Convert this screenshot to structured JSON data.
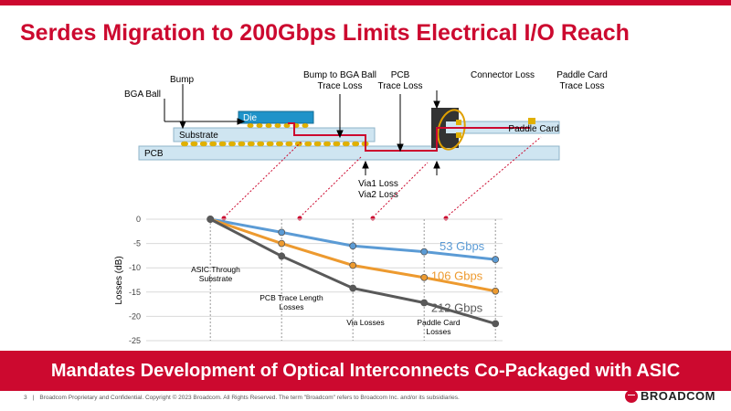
{
  "slide": {
    "title": "Serdes Migration to 200Gbps Limits Electrical I/O Reach",
    "banner": "Mandates Development of Optical Interconnects Co-Packaged with ASIC",
    "page_number": "3",
    "footer_separator": "|",
    "footer_text": "Broadcom Proprietary and Confidential.  Copyright © 2023 Broadcom.  All Rights Reserved. The term \"Broadcom\" refers to Broadcom Inc. and/or its subsidiaries.",
    "logo_text": "BROADCOM"
  },
  "diagram": {
    "labels": {
      "bga_ball": "BGA Ball",
      "bump": "Bump",
      "die": "Die",
      "substrate": "Substrate",
      "pcb": "PCB",
      "paddle_card": "Paddle Card",
      "bump_to_bga_1": "Bump to BGA Ball",
      "bump_to_bga_2": "Trace Loss",
      "pcb_trace_1": "PCB",
      "pcb_trace_2": "Trace Loss",
      "connector_loss": "Connector Loss",
      "paddle_trace_1": "Paddle Card",
      "paddle_trace_2": "Trace Loss",
      "via1": "Via1 Loss",
      "via2": "Via2 Loss"
    },
    "colors": {
      "accent": "#cc092f",
      "trace": "#cc092f",
      "board_fill": "#cfe5f1",
      "die_fill": "#1f93c9",
      "ball": "#e0b000",
      "connector": "#333333",
      "connector_ring": "#e0a000"
    }
  },
  "chart_data": {
    "type": "line",
    "ylabel": "Losses (dB)",
    "ylim": [
      -25,
      0
    ],
    "yticks": [
      "0",
      "-5",
      "-10",
      "-15",
      "-20",
      "-25"
    ],
    "y_tick_values": [
      0,
      -5,
      -10,
      -15,
      -20,
      -25
    ],
    "x": [
      0,
      1,
      2,
      3,
      4
    ],
    "xlim": [
      -0.9,
      4.1
    ],
    "grid": true,
    "series": [
      {
        "name": "53 Gbps",
        "color": "#5b9bd5",
        "values": [
          0,
          -2.7,
          -5.5,
          -6.7,
          -8.3
        ]
      },
      {
        "name": "106 Gbps",
        "color": "#ed9a2f",
        "values": [
          0,
          -5,
          -9.5,
          -12,
          -14.8
        ]
      },
      {
        "name": "212 Gbps",
        "color": "#595959",
        "values": [
          0,
          -7.6,
          -14.2,
          -17.2,
          -21.5
        ]
      }
    ],
    "region_labels": [
      {
        "line1": "ASIC Through",
        "line2": "Substrate"
      },
      {
        "line1": "PCB Trace Length",
        "line2": "Losses"
      },
      {
        "line1": "Via Losses",
        "line2": ""
      },
      {
        "line1": "Paddle Card",
        "line2": "Losses"
      }
    ]
  }
}
